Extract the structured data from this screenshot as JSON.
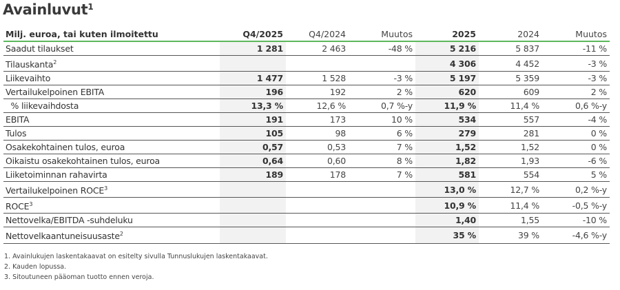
{
  "title": "Avainluvut",
  "title_sup": "1",
  "header": [
    "Milj. euroa, tai kuten ilmoitettu",
    "Q4/2025",
    "Q4/2024",
    "Muutos",
    "2025",
    "2024",
    "Muutos"
  ],
  "rows": [
    {
      "label": "Saadut tilaukset",
      "sup": "",
      "v": [
        "1 281",
        "2 463",
        "-48 %",
        "5 216",
        "5 837",
        "-11 %"
      ]
    },
    {
      "label": "Tilauskanta",
      "sup": "2",
      "v": [
        "",
        "",
        "",
        "4 306",
        "4 452",
        "-3 %"
      ]
    },
    {
      "label": "Liikevaihto",
      "sup": "",
      "v": [
        "1 477",
        "1 528",
        "-3 %",
        "5 197",
        "5 359",
        "-3 %"
      ]
    },
    {
      "label": "Vertailukelpoinen EBITA",
      "sup": "",
      "v": [
        "196",
        "192",
        "2 %",
        "620",
        "609",
        "2 %"
      ]
    },
    {
      "label": "  % liikevaihdosta",
      "sup": "",
      "v": [
        "13,3 %",
        "12,6 %",
        "0,7 %-y",
        "11,9 %",
        "11,4 %",
        "0,6 %-y"
      ]
    },
    {
      "label": "EBITA",
      "sup": "",
      "v": [
        "191",
        "173",
        "10 %",
        "534",
        "557",
        "-4 %"
      ]
    },
    {
      "label": "Tulos",
      "sup": "",
      "v": [
        "105",
        "98",
        "6 %",
        "279",
        "281",
        "0 %"
      ]
    },
    {
      "label": "Osakekohtainen tulos, euroa",
      "sup": "",
      "v": [
        "0,57",
        "0,53",
        "7 %",
        "1,52",
        "1,52",
        "0 %"
      ]
    },
    {
      "label": "Oikaistu osakekohtainen tulos, euroa",
      "sup": "",
      "v": [
        "0,64",
        "0,60",
        "8 %",
        "1,82",
        "1,93",
        "-6 %"
      ]
    },
    {
      "label": "Liiketoiminnan rahavirta",
      "sup": "",
      "v": [
        "189",
        "178",
        "7 %",
        "581",
        "554",
        "5 %"
      ]
    },
    {
      "label": "Vertailukelpoinen ROCE",
      "sup": "3",
      "v": [
        "",
        "",
        "",
        "13,0 %",
        "12,7 %",
        "0,2 %-y"
      ]
    },
    {
      "label": "ROCE",
      "sup": "3",
      "v": [
        "",
        "",
        "",
        "10,9 %",
        "11,4 %",
        "-0,5 %-y"
      ]
    },
    {
      "label": "Nettovelka/EBITDA -suhdeluku",
      "sup": "",
      "v": [
        "",
        "",
        "",
        "1,40",
        "1,55",
        "-10 %"
      ]
    },
    {
      "label": "Nettovelkaantuneisuusaste",
      "sup": "2",
      "v": [
        "",
        "",
        "",
        "35 %",
        "39 %",
        "-4,6 %-y"
      ]
    }
  ],
  "footnotes": [
    "1. Avainlukujen laskentakaavat on esitelty sivulla Tunnuslukujen laskentakaavat.",
    "2. Kauden lopussa.",
    "3. Sitoutuneen pääoman tuotto ennen veroja."
  ],
  "colors": {
    "accent_rule": "#5cb85c",
    "shaded_column": "#f2f2f2"
  }
}
